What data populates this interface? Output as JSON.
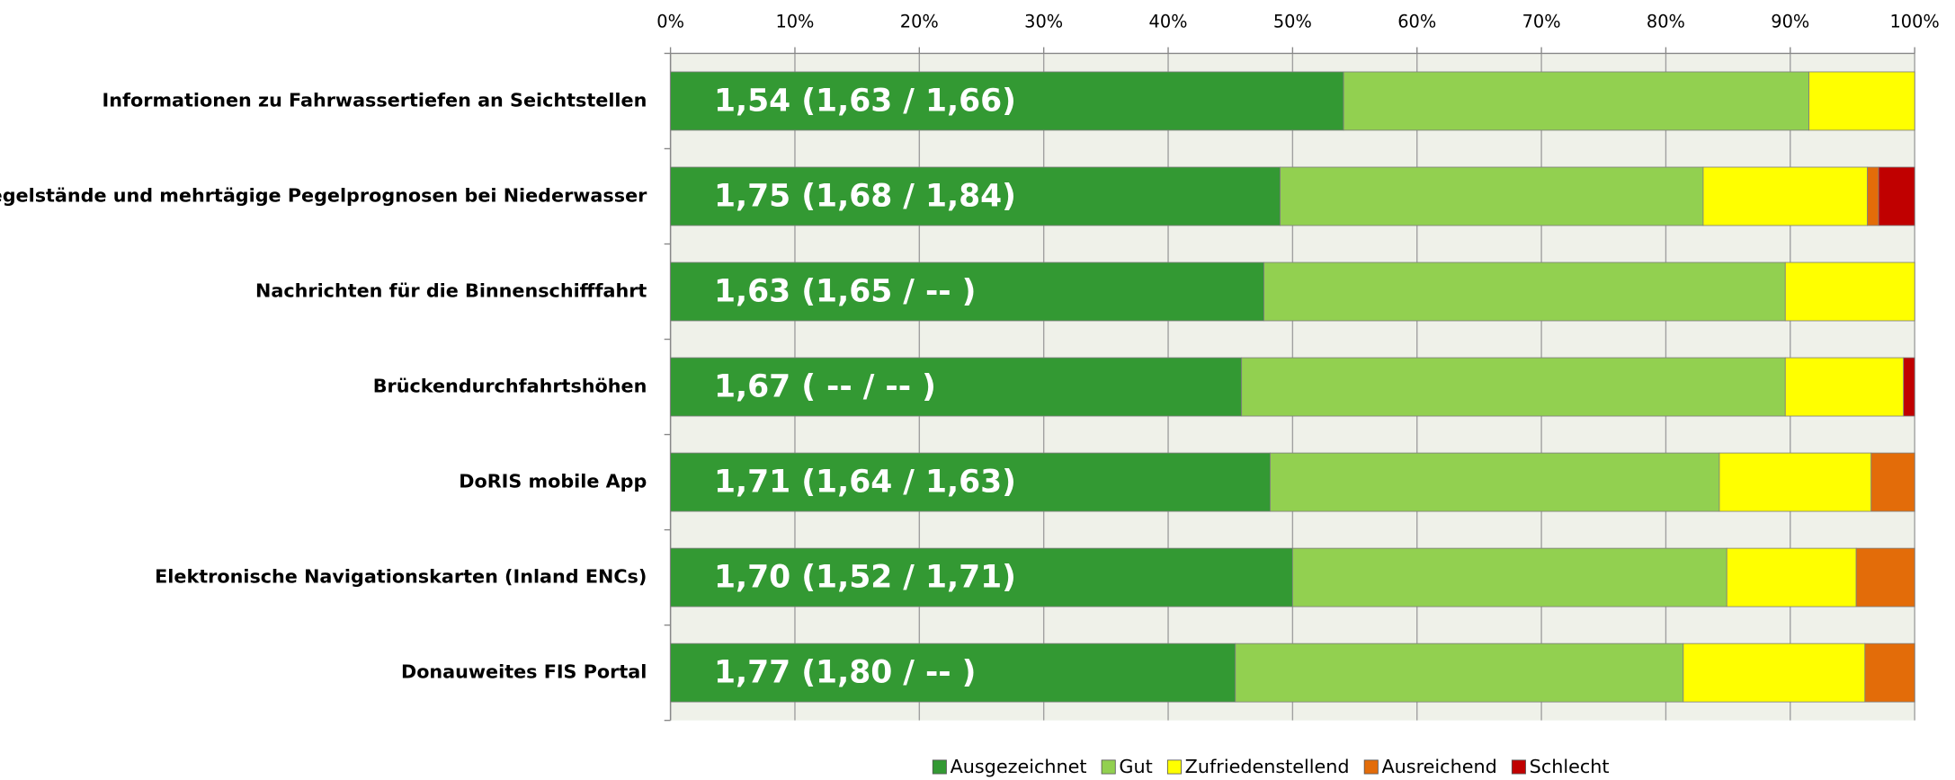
{
  "chart_data": {
    "type": "stacked_barh",
    "categories": [
      "Informationen zu Fahrwassertiefen an Seichtstellen",
      "Pegelstände und mehrtägige Pegelprognosen bei Niederwasser",
      "Nachrichten für die Binnenschifffahrt",
      "Brückendurchfahrtshöhen",
      "DoRIS mobile App",
      "Elektronische Navigationskarten (Inland ENCs)",
      "Donauweites FIS Portal"
    ],
    "bar_labels": [
      "1,54 (1,63 / 1,66)",
      "1,75 (1,68 / 1,84)",
      "1,63 (1,65 / -- )",
      "1,67 ( -- / -- )",
      "1,71 (1,64 / 1,63)",
      "1,70 (1,52 / 1,71)",
      "1,77 (1,80 / -- )"
    ],
    "series": [
      {
        "name": "Ausgezeichnet",
        "color": "#339933",
        "values": [
          54.1,
          49.0,
          47.7,
          45.9,
          48.2,
          50.0,
          45.4
        ]
      },
      {
        "name": "Gut",
        "color": "#92d050",
        "values": [
          37.4,
          34.0,
          41.9,
          43.7,
          36.1,
          34.9,
          36.0
        ]
      },
      {
        "name": "Zufriedenstellend",
        "color": "#ffff00",
        "values": [
          8.5,
          13.2,
          10.4,
          9.5,
          12.2,
          10.4,
          14.6
        ]
      },
      {
        "name": "Ausreichend",
        "color": "#e36c09",
        "values": [
          0,
          0.9,
          0,
          0,
          3.5,
          4.7,
          4.0
        ]
      },
      {
        "name": "Schlecht",
        "color": "#c00000",
        "values": [
          0,
          2.9,
          0,
          0.9,
          0,
          0,
          0
        ]
      }
    ],
    "xlim": [
      0,
      100
    ],
    "xticks": [
      {
        "value": 0,
        "label": "0%"
      },
      {
        "value": 10,
        "label": "10%"
      },
      {
        "value": 20,
        "label": "20%"
      },
      {
        "value": 30,
        "label": "30%"
      },
      {
        "value": 40,
        "label": "40%"
      },
      {
        "value": 50,
        "label": "50%"
      },
      {
        "value": 60,
        "label": "60%"
      },
      {
        "value": 70,
        "label": "70%"
      },
      {
        "value": 80,
        "label": "80%"
      },
      {
        "value": 90,
        "label": "90%"
      },
      {
        "value": 100,
        "label": "100%"
      }
    ],
    "grid": true,
    "legend": "bottom"
  }
}
